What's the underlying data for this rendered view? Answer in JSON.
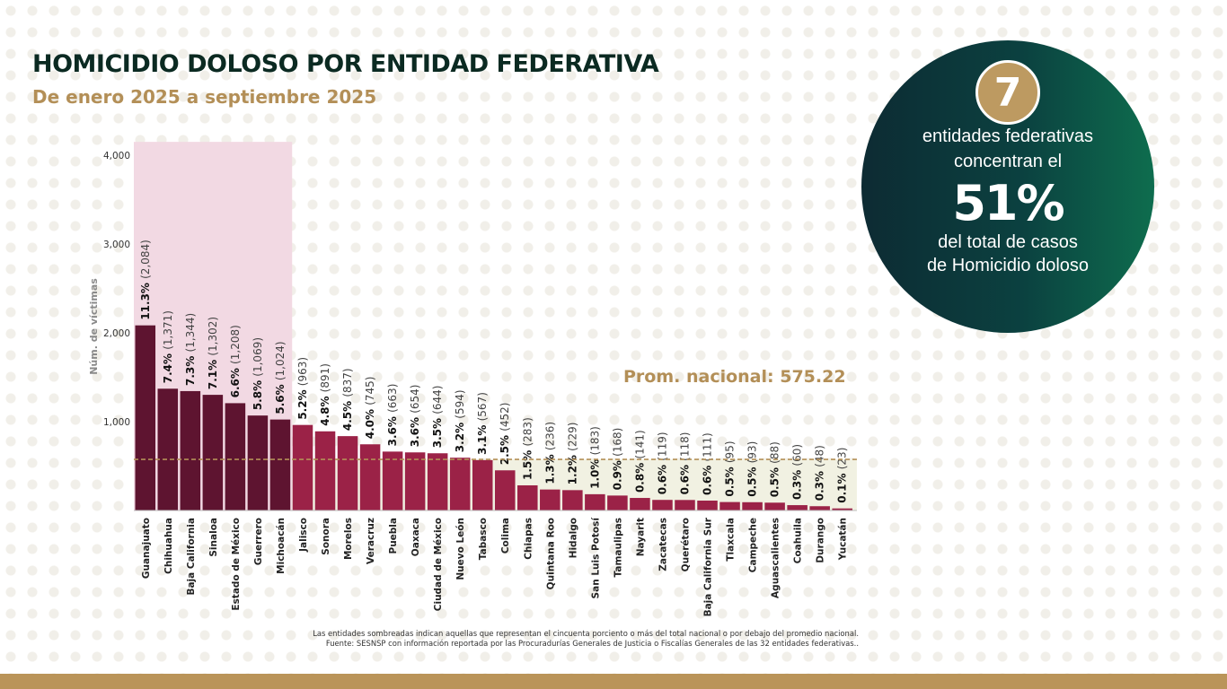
{
  "title": "HOMICIDIO DOLOSO POR ENTIDAD FEDERATIVA",
  "subtitle": "De enero 2025 a septiembre 2025",
  "stat": {
    "number": "7",
    "line1": "entidades federativas",
    "line2": "concentran el",
    "percent": "51%",
    "line4": "del total de casos",
    "line5": "de Homicidio doloso"
  },
  "average_label": "Prom. nacional: 575.22",
  "notes": {
    "line1": "Las entidades sombreadas indican aquellas que representan el cincuenta porciento o más del total nacional o por debajo del promedio nacional.",
    "line2": "Fuente: SESNSP con información reportada por las Procuradurías Generales de Justicia o Fiscalías Generales de las 32 entidades federativas.."
  },
  "colors": {
    "top_bar": "#5e1430",
    "bar": "#9b2247",
    "top_band": "#f2d9e3",
    "low_band": "#f1f1e2",
    "average_line": "#b38f57",
    "gold": "#b38f57",
    "circle_dark": "#0d2b33",
    "circle_green": "#0e6d4e",
    "badge": "#bd9a61"
  },
  "chart_data": {
    "type": "bar",
    "ylabel": "Núm. de víctimas",
    "ylim": [
      0,
      4150
    ],
    "yticks": [
      1000,
      2000,
      3000,
      4000
    ],
    "ytick_labels": [
      "1,000",
      "2,000",
      "3,000",
      "4,000"
    ],
    "average": 575.22,
    "highlight_top_count": 7,
    "categories": [
      "Guanajuato",
      "Chihuahua",
      "Baja California",
      "Sinaloa",
      "Estado de México",
      "Guerrero",
      "Michoacán",
      "Jalisco",
      "Sonora",
      "Morelos",
      "Veracruz",
      "Puebla",
      "Oaxaca",
      "Ciudad de México",
      "Nuevo León",
      "Tabasco",
      "Colima",
      "Chiapas",
      "Quintana Roo",
      "Hidalgo",
      "San Luis Potosí",
      "Tamaulipas",
      "Nayarit",
      "Zacatecas",
      "Querétaro",
      "Baja California Sur",
      "Tlaxcala",
      "Campeche",
      "Aguascalientes",
      "Coahuila",
      "Durango",
      "Yucatán"
    ],
    "values": [
      2084,
      1371,
      1344,
      1302,
      1208,
      1069,
      1024,
      963,
      891,
      837,
      745,
      663,
      654,
      644,
      594,
      567,
      452,
      283,
      236,
      229,
      183,
      168,
      141,
      119,
      118,
      111,
      95,
      93,
      88,
      60,
      48,
      23
    ],
    "percent_labels": [
      "11.3%",
      "7.4%",
      "7.3%",
      "7.1%",
      "6.6%",
      "5.8%",
      "5.6%",
      "5.2%",
      "4.8%",
      "4.5%",
      "4.0%",
      "3.6%",
      "3.6%",
      "3.5%",
      "3.2%",
      "3.1%",
      "2.5%",
      "1.5%",
      "1.3%",
      "1.2%",
      "1.0%",
      "0.9%",
      "0.8%",
      "0.6%",
      "0.6%",
      "0.6%",
      "0.5%",
      "0.5%",
      "0.5%",
      "0.3%",
      "0.3%",
      "0.1%"
    ],
    "value_labels": [
      "(2,084)",
      "(1,371)",
      "(1,344)",
      "(1,302)",
      "(1,208)",
      "(1,069)",
      "(1,024)",
      "(963)",
      "(891)",
      "(837)",
      "(745)",
      "(663)",
      "(654)",
      "(644)",
      "(594)",
      "(567)",
      "(452)",
      "(283)",
      "(236)",
      "(229)",
      "(183)",
      "(168)",
      "(141)",
      "(119)",
      "(118)",
      "(111)",
      "(95)",
      "(93)",
      "(88)",
      "(60)",
      "(48)",
      "(23)"
    ]
  }
}
